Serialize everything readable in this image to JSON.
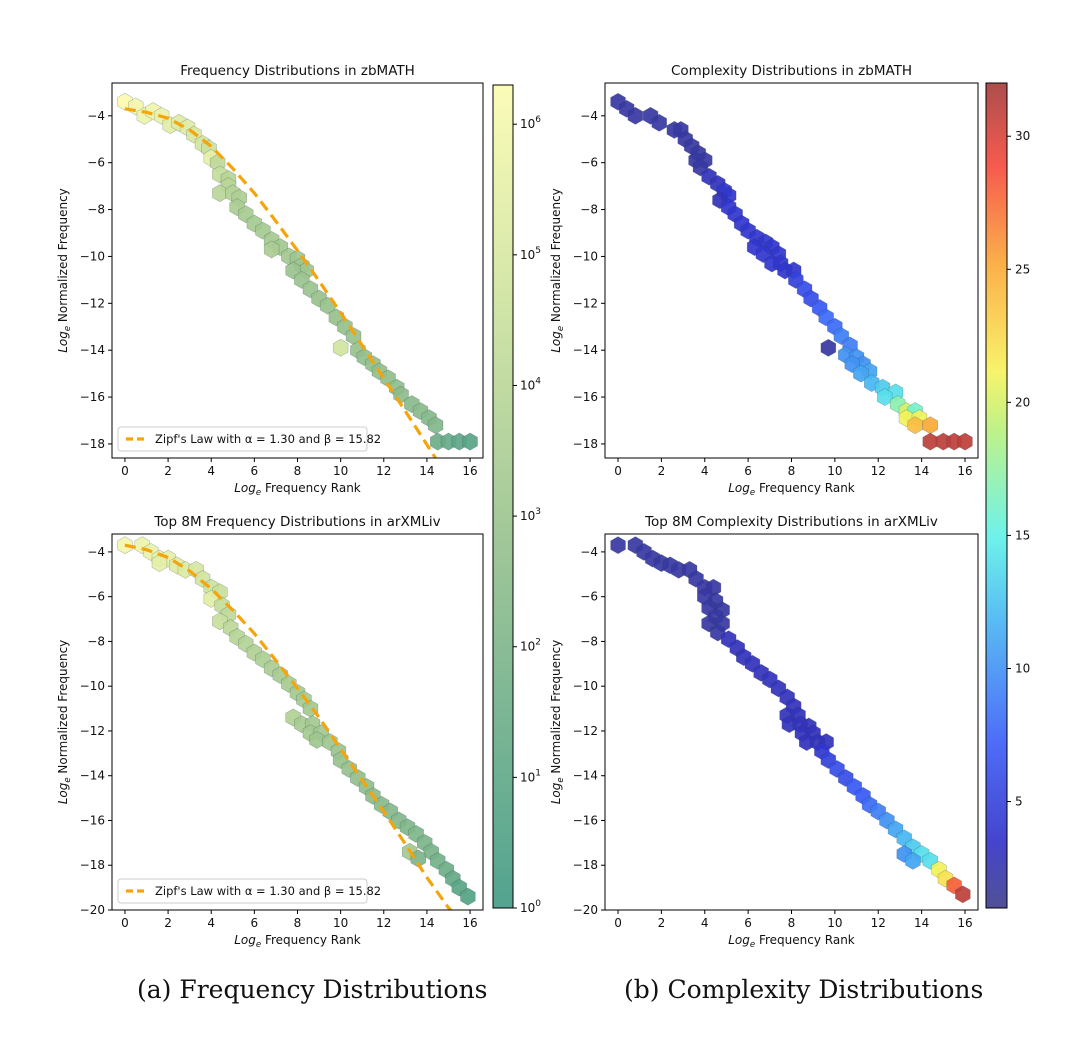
{
  "chart_data": [
    {
      "type": "hexbin",
      "title": "Frequency Distributions in zbMATH",
      "xlabel_base": "Log",
      "xlabel_sub": "e",
      "xlabel_rest": " Frequency Rank",
      "ylabel_base": "Log",
      "ylabel_sub": "e",
      "ylabel_rest": " Normalized Frequency",
      "xlim": [
        -0.6,
        16.6
      ],
      "ylim": [
        -18.6,
        -2.6
      ],
      "xticks": [
        0,
        2,
        4,
        6,
        8,
        10,
        12,
        14,
        16
      ],
      "yticks": [
        -4,
        -6,
        -8,
        -10,
        -12,
        -14,
        -16,
        -18
      ],
      "color_by": "log10_count",
      "colormap": "summer-ish (teal to pale yellow)",
      "cells": [
        [
          0,
          -3.4,
          6.3
        ],
        [
          0.5,
          -3.6,
          6
        ],
        [
          0.9,
          -4,
          5.8
        ],
        [
          1.3,
          -3.8,
          5.9
        ],
        [
          1.7,
          -4,
          5.7
        ],
        [
          2.1,
          -4.4,
          5.4
        ],
        [
          2.5,
          -4.3,
          5.3
        ],
        [
          2.9,
          -4.5,
          5.3
        ],
        [
          3.2,
          -4.8,
          5
        ],
        [
          3.6,
          -5.2,
          4.8
        ],
        [
          3.9,
          -5.4,
          4.6
        ],
        [
          4,
          -5.8,
          5.6
        ],
        [
          4.3,
          -6,
          4.2
        ],
        [
          4.4,
          -6.5,
          4.4
        ],
        [
          4.8,
          -6.7,
          3.9
        ],
        [
          4.8,
          -7,
          4
        ],
        [
          4.4,
          -7.3,
          4
        ],
        [
          5,
          -7.3,
          3.8
        ],
        [
          5.3,
          -7.5,
          3.6
        ],
        [
          5.2,
          -7.9,
          3.5
        ],
        [
          5.6,
          -8.2,
          3.4
        ],
        [
          6,
          -8.6,
          3.3
        ],
        [
          6.4,
          -8.9,
          3.3
        ],
        [
          6.8,
          -9.3,
          3.3
        ],
        [
          7.2,
          -9.6,
          3.2
        ],
        [
          6.8,
          -9.7,
          3.5
        ],
        [
          7.6,
          -10,
          3.2
        ],
        [
          8,
          -10.1,
          3.1
        ],
        [
          8.2,
          -10.4,
          3.1
        ],
        [
          8.4,
          -10.6,
          3.1
        ],
        [
          7.8,
          -10.6,
          3
        ],
        [
          8.2,
          -11,
          3
        ],
        [
          8.6,
          -11.4,
          3
        ],
        [
          9,
          -11.8,
          2.9
        ],
        [
          9.4,
          -12.1,
          2.9
        ],
        [
          9.8,
          -12.6,
          2.9
        ],
        [
          10.2,
          -13,
          2.8
        ],
        [
          10.6,
          -13.4,
          2.8
        ],
        [
          10,
          -13.9,
          4.8
        ],
        [
          10.8,
          -14,
          2.9
        ],
        [
          11.1,
          -14.3,
          2.7
        ],
        [
          11.5,
          -14.6,
          2.7
        ],
        [
          11.8,
          -14.9,
          2.7
        ],
        [
          12.2,
          -15.2,
          2.6
        ],
        [
          12.6,
          -15.6,
          2.6
        ],
        [
          12.8,
          -15.9,
          2.5
        ],
        [
          13.3,
          -16.3,
          2.4
        ],
        [
          13.7,
          -16.6,
          2.4
        ],
        [
          14.1,
          -16.9,
          2.3
        ],
        [
          14.4,
          -17.2,
          2.2
        ],
        [
          14.5,
          -17.9,
          1.5
        ],
        [
          15,
          -17.9,
          1.3
        ],
        [
          15.5,
          -17.9,
          1
        ],
        [
          16,
          -17.9,
          0.8
        ]
      ],
      "fit_line": {
        "label_prefix": "Zipf's Law with ",
        "alpha": "α = 1.30",
        "beta": "β = 15.82",
        "label_sep": " and ",
        "color": "#f5a40c",
        "x": [
          0,
          1,
          2,
          3,
          4,
          5,
          6,
          7,
          8,
          9,
          10,
          11,
          12,
          13,
          14.4
        ],
        "y": [
          -3.7,
          -3.85,
          -4.1,
          -4.6,
          -5.3,
          -6.25,
          -7.3,
          -8.5,
          -9.75,
          -11.05,
          -12.4,
          -13.8,
          -15.2,
          -16.6,
          -18.6
        ]
      }
    },
    {
      "type": "hexbin",
      "title": "Complexity Distributions in zbMATH",
      "xlabel_base": "Log",
      "xlabel_sub": "e",
      "xlabel_rest": " Frequency Rank",
      "ylabel_base": "Log",
      "ylabel_sub": "e",
      "ylabel_rest": " Normalized Frequency",
      "xlim": [
        -0.6,
        16.6
      ],
      "ylim": [
        -18.6,
        -2.6
      ],
      "xticks": [
        0,
        2,
        4,
        6,
        8,
        10,
        12,
        14,
        16
      ],
      "yticks": [
        -4,
        -6,
        -8,
        -10,
        -12,
        -14,
        -16,
        -18
      ],
      "color_by": "complexity",
      "colormap": "jet",
      "cells": [
        [
          0,
          -3.4,
          2
        ],
        [
          0.4,
          -3.7,
          2
        ],
        [
          0.8,
          -4,
          2
        ],
        [
          1.5,
          -4,
          2
        ],
        [
          1.9,
          -4.3,
          2
        ],
        [
          2.6,
          -4.6,
          2
        ],
        [
          2.9,
          -4.6,
          2
        ],
        [
          3.1,
          -5,
          2
        ],
        [
          3.4,
          -5.3,
          2
        ],
        [
          3.7,
          -5.6,
          2
        ],
        [
          3.6,
          -5.9,
          2
        ],
        [
          4,
          -5.9,
          2
        ],
        [
          3.8,
          -6.2,
          2
        ],
        [
          4.2,
          -6.6,
          3
        ],
        [
          4.6,
          -6.9,
          3
        ],
        [
          4.9,
          -7.2,
          4
        ],
        [
          5.1,
          -7.4,
          4
        ],
        [
          4.7,
          -7.6,
          3
        ],
        [
          5.1,
          -7.9,
          4
        ],
        [
          5.4,
          -8.2,
          4
        ],
        [
          5.7,
          -8.6,
          4
        ],
        [
          6,
          -8.9,
          4
        ],
        [
          6.4,
          -9.2,
          4
        ],
        [
          6.8,
          -9.4,
          4
        ],
        [
          6.3,
          -9.6,
          4
        ],
        [
          7.1,
          -9.6,
          4
        ],
        [
          6.7,
          -9.9,
          4
        ],
        [
          7.4,
          -9.9,
          4
        ],
        [
          7.1,
          -10.3,
          4
        ],
        [
          7.5,
          -10.3,
          4
        ],
        [
          7.7,
          -10.6,
          4
        ],
        [
          8.1,
          -10.6,
          4
        ],
        [
          8.2,
          -11,
          5
        ],
        [
          8.6,
          -11.4,
          6
        ],
        [
          8.9,
          -11.8,
          6
        ],
        [
          9.3,
          -12.2,
          7
        ],
        [
          9.6,
          -12.6,
          8
        ],
        [
          10,
          -13,
          8
        ],
        [
          10.3,
          -13.4,
          9
        ],
        [
          9.7,
          -13.9,
          2
        ],
        [
          10.7,
          -13.8,
          9
        ],
        [
          10.5,
          -14.2,
          10
        ],
        [
          11,
          -14.3,
          10
        ],
        [
          11.3,
          -14.6,
          10
        ],
        [
          10.8,
          -14.6,
          10
        ],
        [
          11.6,
          -14.9,
          11
        ],
        [
          11.2,
          -15,
          11
        ],
        [
          11.7,
          -15.4,
          12
        ],
        [
          12.2,
          -15.6,
          13
        ],
        [
          12.8,
          -15.8,
          14
        ],
        [
          12.3,
          -16,
          14
        ],
        [
          12.9,
          -16.3,
          17
        ],
        [
          13.3,
          -16.6,
          20
        ],
        [
          13.7,
          -16.6,
          16
        ],
        [
          13.3,
          -16.9,
          21
        ],
        [
          13.9,
          -16.9,
          21
        ],
        [
          13.7,
          -17.2,
          24
        ],
        [
          14.4,
          -17.2,
          25
        ],
        [
          14.4,
          -17.9,
          31
        ],
        [
          15,
          -17.9,
          31
        ],
        [
          15.5,
          -17.9,
          31
        ],
        [
          16,
          -17.9,
          31
        ]
      ]
    },
    {
      "type": "hexbin",
      "title": "Top 8M Frequency Distributions in arXMLiv",
      "xlabel_base": "Log",
      "xlabel_sub": "e",
      "xlabel_rest": " Frequency Rank",
      "ylabel_base": "Log",
      "ylabel_sub": "e",
      "ylabel_rest": " Normalized Frequency",
      "xlim": [
        -0.6,
        16.6
      ],
      "ylim": [
        -20,
        -3.2
      ],
      "xticks": [
        0,
        2,
        4,
        6,
        8,
        10,
        12,
        14,
        16
      ],
      "yticks": [
        -4,
        -6,
        -8,
        -10,
        -12,
        -14,
        -16,
        -18,
        -20
      ],
      "color_by": "log10_count",
      "colormap": "summer-ish (teal to pale yellow)",
      "cells": [
        [
          0,
          -3.7,
          6
        ],
        [
          0.8,
          -3.7,
          5.8
        ],
        [
          1.2,
          -4,
          5.7
        ],
        [
          1.6,
          -4.3,
          5.6
        ],
        [
          2,
          -4.3,
          5.5
        ],
        [
          1.6,
          -4.5,
          5.5
        ],
        [
          2.4,
          -4.6,
          5.3
        ],
        [
          2.8,
          -4.8,
          5.2
        ],
        [
          3.3,
          -4.8,
          5
        ],
        [
          3.6,
          -5.2,
          4.8
        ],
        [
          4,
          -5.6,
          4.6
        ],
        [
          4.4,
          -5.8,
          4.5
        ],
        [
          4,
          -6.1,
          5.4
        ],
        [
          4.5,
          -6.4,
          4.4
        ],
        [
          4.8,
          -6.8,
          4.2
        ],
        [
          4.4,
          -7.1,
          4.5
        ],
        [
          4.9,
          -7.4,
          4.1
        ],
        [
          5.2,
          -7.8,
          3.9
        ],
        [
          5.6,
          -8.1,
          3.8
        ],
        [
          6,
          -8.5,
          3.7
        ],
        [
          6.4,
          -8.8,
          3.6
        ],
        [
          6.8,
          -9.2,
          3.5
        ],
        [
          7.2,
          -9.5,
          3.4
        ],
        [
          7.6,
          -9.9,
          3.4
        ],
        [
          8,
          -10.3,
          3.3
        ],
        [
          8.3,
          -10.6,
          3.3
        ],
        [
          8.6,
          -11,
          3.2
        ],
        [
          7.8,
          -11.4,
          3.7
        ],
        [
          8.2,
          -11.7,
          3.4
        ],
        [
          8.7,
          -11.7,
          3.2
        ],
        [
          8.6,
          -12.1,
          3.3
        ],
        [
          9.1,
          -12.1,
          3.2
        ],
        [
          8.9,
          -12.4,
          3.1
        ],
        [
          9.5,
          -12.5,
          3.1
        ],
        [
          9.9,
          -12.9,
          3
        ],
        [
          10,
          -13.3,
          2.9
        ],
        [
          10.4,
          -13.7,
          2.8
        ],
        [
          10.8,
          -14.1,
          2.7
        ],
        [
          11.2,
          -14.5,
          2.6
        ],
        [
          11.5,
          -14.9,
          2.5
        ],
        [
          11.9,
          -15.3,
          2.4
        ],
        [
          12.3,
          -15.6,
          2.3
        ],
        [
          12.7,
          -16,
          2.2
        ],
        [
          13.1,
          -16.3,
          2.1
        ],
        [
          13.5,
          -16.6,
          2.1
        ],
        [
          13.9,
          -17,
          2
        ],
        [
          13.2,
          -17.4,
          3.2
        ],
        [
          14.2,
          -17.4,
          1.9
        ],
        [
          13.6,
          -17.7,
          2
        ],
        [
          14.5,
          -17.8,
          1.7
        ],
        [
          14.9,
          -18.2,
          1.5
        ],
        [
          15.2,
          -18.6,
          1.2
        ],
        [
          15.5,
          -19,
          0.9
        ],
        [
          15.9,
          -19.4,
          0.7
        ]
      ],
      "fit_line": {
        "label_prefix": "Zipf's Law with ",
        "alpha": "α = 1.30",
        "beta": "β = 15.82",
        "label_sep": " and ",
        "color": "#f5a40c",
        "x": [
          0,
          1,
          2,
          3,
          4,
          5,
          6,
          7,
          8,
          9,
          10,
          11,
          12,
          13,
          14,
          15,
          15.3
        ],
        "y": [
          -3.7,
          -3.9,
          -4.25,
          -4.85,
          -5.65,
          -6.6,
          -7.65,
          -8.85,
          -10.1,
          -11.4,
          -12.8,
          -14.2,
          -15.6,
          -17.05,
          -18.55,
          -19.9,
          -20.2
        ]
      }
    },
    {
      "type": "hexbin",
      "title": "Top 8M Complexity Distributions in arXMLiv",
      "xlabel_base": "Log",
      "xlabel_sub": "e",
      "xlabel_rest": " Frequency Rank",
      "ylabel_base": "Log",
      "ylabel_sub": "e",
      "ylabel_rest": " Normalized Frequency",
      "xlim": [
        -0.6,
        16.6
      ],
      "ylim": [
        -20,
        -3.2
      ],
      "xticks": [
        0,
        2,
        4,
        6,
        8,
        10,
        12,
        14,
        16
      ],
      "yticks": [
        -4,
        -6,
        -8,
        -10,
        -12,
        -14,
        -16,
        -18,
        -20
      ],
      "color_by": "complexity",
      "colormap": "jet",
      "cells": [
        [
          0,
          -3.7,
          2
        ],
        [
          0.8,
          -3.7,
          2
        ],
        [
          1.2,
          -4,
          2
        ],
        [
          1.6,
          -4.3,
          2
        ],
        [
          2,
          -4.5,
          2
        ],
        [
          2.4,
          -4.6,
          2
        ],
        [
          2.8,
          -4.8,
          2
        ],
        [
          3.3,
          -4.8,
          2
        ],
        [
          3.6,
          -5.2,
          2
        ],
        [
          4,
          -5.6,
          2
        ],
        [
          4.4,
          -5.6,
          2
        ],
        [
          4,
          -6,
          2
        ],
        [
          4.5,
          -6.2,
          2
        ],
        [
          4.2,
          -6.5,
          2
        ],
        [
          4.8,
          -6.6,
          2
        ],
        [
          4.5,
          -6.9,
          2
        ],
        [
          4.2,
          -7.2,
          2
        ],
        [
          4.8,
          -7.2,
          2
        ],
        [
          4.6,
          -7.6,
          2
        ],
        [
          5.1,
          -7.9,
          3
        ],
        [
          5.5,
          -8.3,
          3
        ],
        [
          5.8,
          -8.7,
          3
        ],
        [
          6.2,
          -9,
          3
        ],
        [
          6.6,
          -9.4,
          3
        ],
        [
          7,
          -9.7,
          3
        ],
        [
          7.4,
          -10.1,
          3
        ],
        [
          7.8,
          -10.5,
          3
        ],
        [
          8.1,
          -10.9,
          3
        ],
        [
          7.8,
          -11.3,
          3
        ],
        [
          8.3,
          -11.3,
          3
        ],
        [
          7.9,
          -11.7,
          3
        ],
        [
          8.4,
          -11.7,
          3
        ],
        [
          8.8,
          -11.8,
          3
        ],
        [
          8.5,
          -12.1,
          3
        ],
        [
          9,
          -12.1,
          3
        ],
        [
          8.7,
          -12.5,
          3
        ],
        [
          9.2,
          -12.5,
          3
        ],
        [
          9.6,
          -12.5,
          3
        ],
        [
          9.4,
          -12.9,
          4
        ],
        [
          9.7,
          -13.3,
          5
        ],
        [
          10.1,
          -13.7,
          6
        ],
        [
          10.5,
          -14.1,
          6
        ],
        [
          10.9,
          -14.5,
          7
        ],
        [
          11.3,
          -14.9,
          7
        ],
        [
          11.6,
          -15.3,
          8
        ],
        [
          12,
          -15.6,
          9
        ],
        [
          12.4,
          -16,
          10
        ],
        [
          12.8,
          -16.4,
          11
        ],
        [
          13.2,
          -16.8,
          12
        ],
        [
          13.6,
          -17.2,
          13
        ],
        [
          13.2,
          -17.5,
          10
        ],
        [
          14,
          -17.5,
          14
        ],
        [
          13.6,
          -17.8,
          11
        ],
        [
          14.4,
          -17.8,
          14
        ],
        [
          14.8,
          -18.2,
          21
        ],
        [
          15.1,
          -18.6,
          22
        ],
        [
          15.5,
          -18.9,
          28
        ],
        [
          15.9,
          -19.3,
          31
        ]
      ]
    }
  ],
  "colorbars": [
    {
      "type": "log",
      "min_exp": 0,
      "max_exp": 6.3,
      "tick_base": "10",
      "tick_exps": [
        "0",
        "1",
        "2",
        "3",
        "4",
        "5",
        "6"
      ]
    },
    {
      "type": "linear",
      "min": 1,
      "max": 32,
      "ticks": [
        "5",
        "10",
        "15",
        "20",
        "25",
        "30"
      ]
    }
  ],
  "captions": {
    "a": "(a) Frequency Distributions",
    "b": "(b) Complexity Distributions"
  }
}
